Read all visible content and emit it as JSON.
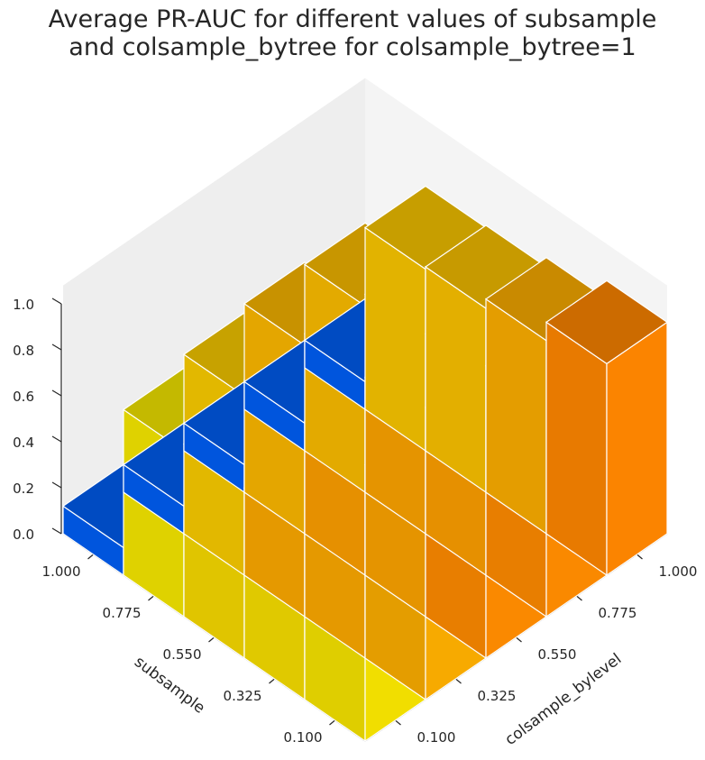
{
  "chart_data": {
    "type": "bar3d",
    "title": "Average PR-AUC for different values of subsample\n and colsample_bytree for colsample_bytree=1",
    "xlabel": "subsample",
    "ylabel": "colsample_bylevel",
    "zlabel": "",
    "x_ticks": [
      "1.000",
      "0.775",
      "0.550",
      "0.325",
      "0.100"
    ],
    "y_ticks": [
      "0.100",
      "0.325",
      "0.550",
      "0.775",
      "1.000"
    ],
    "z_ticks": [
      "0.0",
      "0.2",
      "0.4",
      "0.6",
      "0.8",
      "1.0"
    ],
    "zlim": [
      0,
      1.0
    ],
    "grid": false,
    "subsample_values": [
      0.1,
      0.325,
      0.55,
      0.775,
      1.0
    ],
    "colsample_bylevel_values": [
      0.1,
      0.325,
      0.55,
      0.775,
      1.0
    ],
    "values": [
      [
        0.12,
        0.12,
        0.12,
        0.12,
        0.12
      ],
      [
        0.72,
        0.78,
        0.82,
        0.81,
        0.79
      ],
      [
        0.75,
        0.85,
        0.87,
        0.86,
        0.8
      ],
      [
        0.74,
        0.85,
        0.86,
        0.87,
        0.84
      ],
      [
        0.73,
        0.84,
        0.91,
        0.91,
        0.92
      ]
    ],
    "colors": {
      "low": "#0055dd",
      "mid": "#dfd200",
      "high": "#e87a00"
    }
  }
}
